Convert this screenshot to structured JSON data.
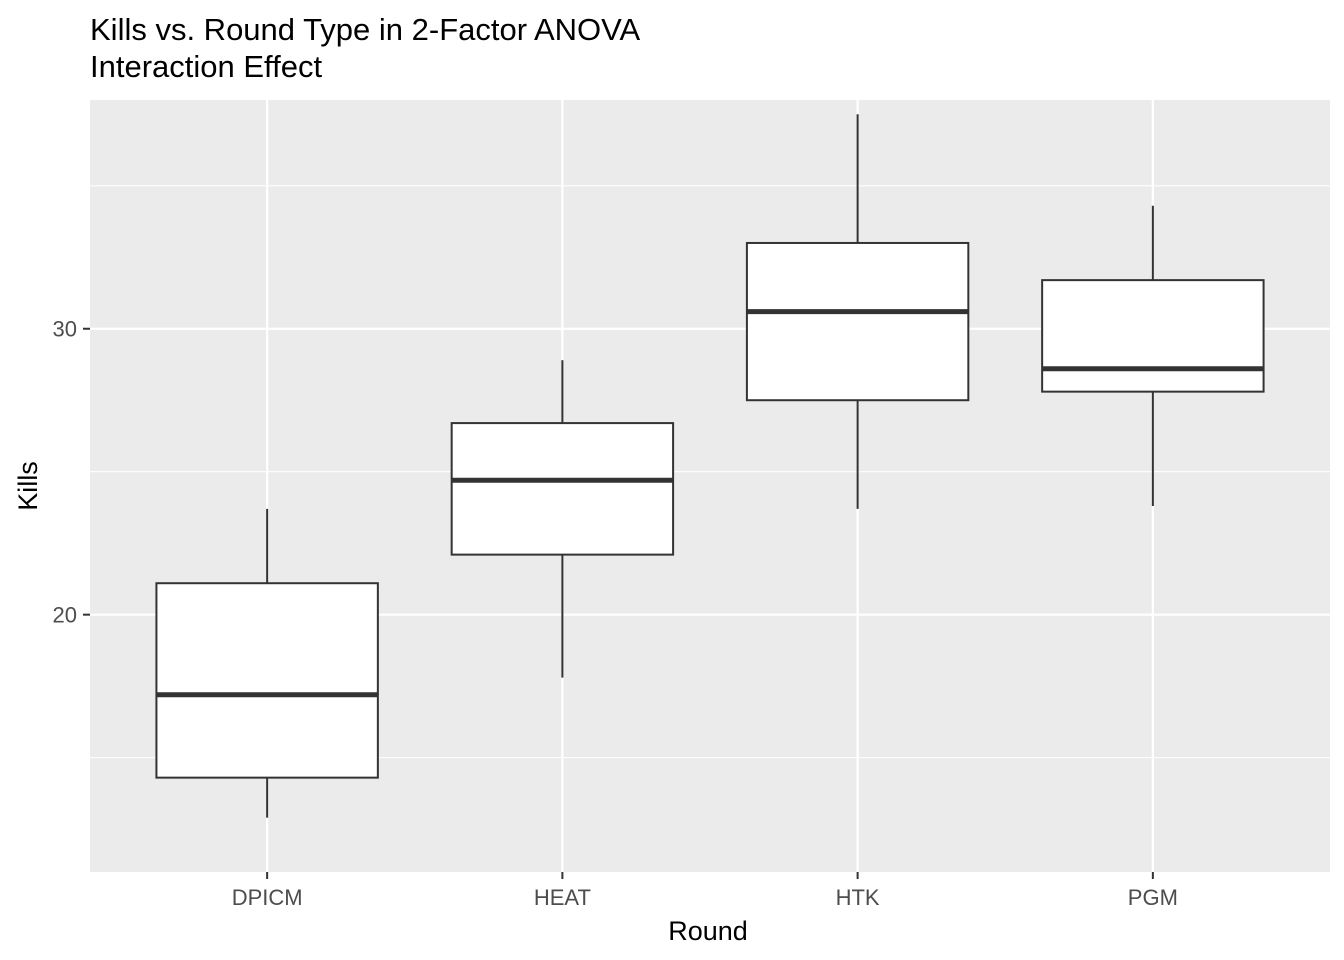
{
  "chart_data": {
    "type": "boxplot",
    "title": "Kills vs. Round Type in 2-Factor ANOVA",
    "subtitle": "Interaction Effect",
    "xlabel": "Round",
    "ylabel": "Kills",
    "ylim": [
      11.0,
      38.0
    ],
    "y_major_ticks": [
      20,
      30
    ],
    "y_minor_grid": [
      15,
      25,
      35
    ],
    "grid": true,
    "legend": "none",
    "colors": {
      "panel": "#EBEBEB",
      "grid": "#FFFFFF",
      "box_fill": "#FFFFFF",
      "box_line": "#333333",
      "axis_text": "#4D4D4D"
    },
    "categories": [
      "DPICM",
      "HEAT",
      "HTK",
      "PGM"
    ],
    "boxes": [
      {
        "category": "DPICM",
        "whisker_low": 12.9,
        "q1": 14.3,
        "median": 17.2,
        "q3": 21.1,
        "whisker_high": 23.7
      },
      {
        "category": "HEAT",
        "whisker_low": 17.8,
        "q1": 22.1,
        "median": 24.7,
        "q3": 26.7,
        "whisker_high": 28.9
      },
      {
        "category": "HTK",
        "whisker_low": 23.7,
        "q1": 27.5,
        "median": 30.6,
        "q3": 33.0,
        "whisker_high": 37.5
      },
      {
        "category": "PGM",
        "whisker_low": 23.8,
        "q1": 27.8,
        "median": 28.6,
        "q3": 31.7,
        "whisker_high": 34.3
      }
    ]
  }
}
